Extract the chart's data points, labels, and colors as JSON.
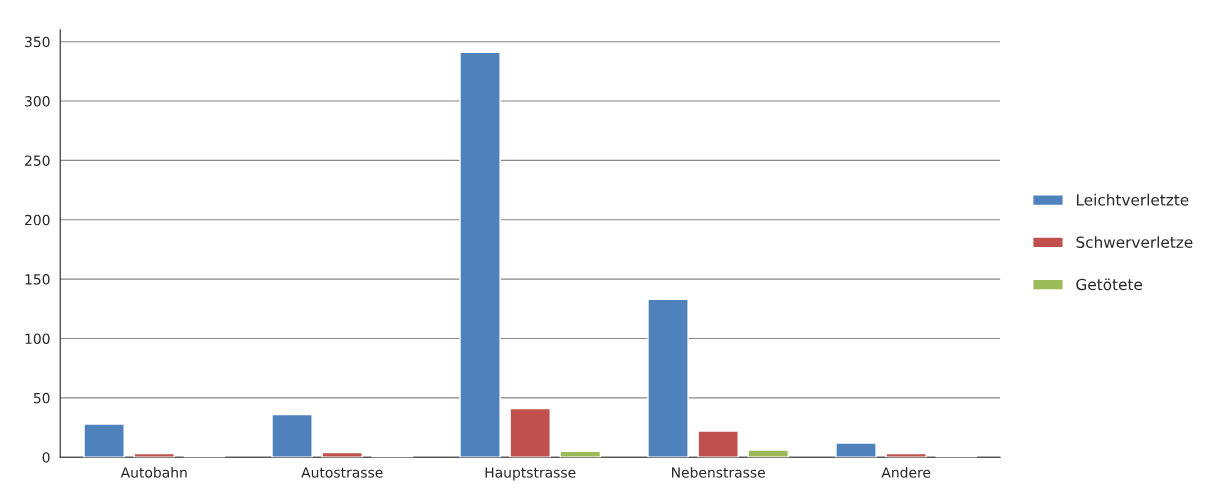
{
  "chart_data": {
    "type": "bar",
    "categories": [
      "Autobahn",
      "Autostrasse",
      "Hauptstrasse",
      "Nebenstrasse",
      "Andere"
    ],
    "series": [
      {
        "name": "Leichtverletzte",
        "color": "#4f81bd",
        "values": [
          28,
          36,
          341,
          133,
          12
        ]
      },
      {
        "name": "Schwerverletze",
        "color": "#c0504d",
        "values": [
          3,
          4,
          41,
          22,
          3
        ]
      },
      {
        "name": "Getötete",
        "color": "#9bbb59",
        "values": [
          1,
          1,
          5,
          6,
          1
        ]
      }
    ],
    "ylim": [
      0,
      360
    ],
    "yticks": [
      0,
      50,
      100,
      150,
      200,
      250,
      300,
      350
    ],
    "grid": "y",
    "legend": "right"
  }
}
